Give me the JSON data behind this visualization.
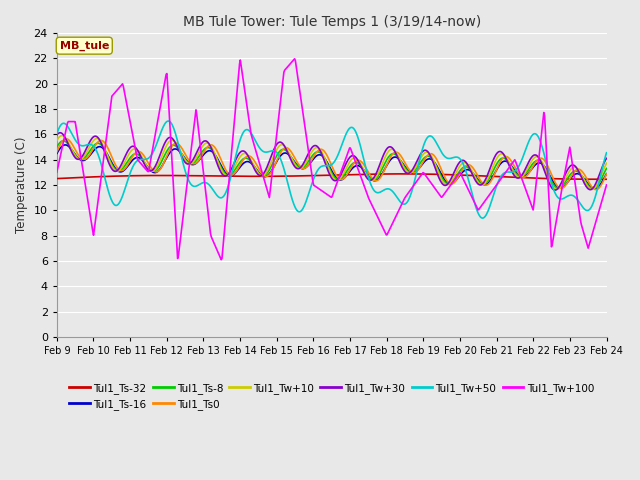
{
  "title": "MB Tule Tower: Tule Temps 1 (3/19/14-now)",
  "ylabel": "Temperature (C)",
  "ylim": [
    0,
    24
  ],
  "yticks": [
    0,
    2,
    4,
    6,
    8,
    10,
    12,
    14,
    16,
    18,
    20,
    22,
    24
  ],
  "x_labels": [
    "Feb 9",
    "Feb 10",
    "Feb 11",
    "Feb 12",
    "Feb 13",
    "Feb 14",
    "Feb 15",
    "Feb 16",
    "Feb 17",
    "Feb 18",
    "Feb 19",
    "Feb 20",
    "Feb 21",
    "Feb 22",
    "Feb 23",
    "Feb 24"
  ],
  "series_colors": {
    "Tul1_Ts-32": "#cc0000",
    "Tul1_Ts-16": "#0000cc",
    "Tul1_Ts-8": "#00cc00",
    "Tul1_Ts0": "#ff8800",
    "Tul1_Tw+10": "#cccc00",
    "Tul1_Tw+30": "#8800cc",
    "Tul1_Tw+50": "#00cccc",
    "Tul1_Tw+100": "#ff00ff"
  },
  "legend_label": "MB_tule",
  "bg_color": "#e8e8e8",
  "grid_color": "#ffffff"
}
